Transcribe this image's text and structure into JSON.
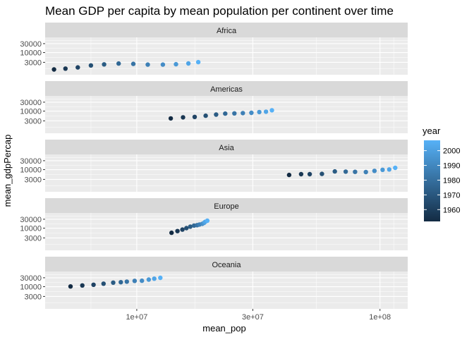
{
  "chart_data": {
    "type": "scatter",
    "title": "Mean GDP per capita by mean population per continent over time",
    "xlabel": "mean_pop",
    "ylabel": "mean_gdpPercap",
    "x_scale": "log10",
    "y_scale": "log10",
    "xlim": [
      4200000,
      130000000
    ],
    "ylim": [
      650,
      65000
    ],
    "x_ticks": [
      10000000,
      30000000,
      100000000
    ],
    "x_tick_labels": [
      "1e+07",
      "3e+07",
      "1e+08"
    ],
    "y_ticks": [
      3000,
      10000,
      30000
    ],
    "y_tick_labels": [
      "3000",
      "10000",
      "30000"
    ],
    "grid": true,
    "legend": {
      "title": "year",
      "placement": "right",
      "type": "colorbar",
      "range": [
        1952,
        2007
      ],
      "ticks": [
        1960,
        1970,
        1980,
        1990,
        2000
      ],
      "color_low": "#132b43",
      "color_high": "#56b1f7"
    },
    "years": [
      1952,
      1957,
      1962,
      1967,
      1972,
      1977,
      1982,
      1987,
      1992,
      1997,
      2002,
      2007
    ],
    "facets": [
      {
        "name": "Africa",
        "x": [
          4570000,
          5090000,
          5720000,
          6480000,
          7340000,
          8420000,
          9680000,
          11100000,
          12800000,
          14500000,
          16300000,
          17900000
        ],
        "y": [
          1250,
          1380,
          1600,
          2050,
          2340,
          2590,
          2480,
          2280,
          2280,
          2380,
          2600,
          3090
        ]
      },
      {
        "name": "Americas",
        "x": [
          13800000,
          15500000,
          17300000,
          19200000,
          21200000,
          23100000,
          25200000,
          27300000,
          29600000,
          31900000,
          33990000,
          35950000
        ],
        "y": [
          4080,
          4620,
          4900,
          5670,
          6490,
          7350,
          7510,
          7790,
          8050,
          8890,
          9290,
          11000
        ]
      },
      {
        "name": "Asia",
        "x": [
          42300000,
          47400000,
          51400000,
          57700000,
          65200000,
          72300000,
          79000000,
          87500000,
          94900000,
          102500000,
          109100000,
          115500000
        ],
        "y": [
          5200,
          5700,
          5700,
          5900,
          8000,
          7800,
          7600,
          7400,
          8600,
          9800,
          10200,
          12500
        ]
      },
      {
        "name": "Europe",
        "x": [
          13900000,
          14700000,
          15400000,
          16000000,
          16600000,
          17200000,
          17700000,
          18100000,
          18600000,
          18900000,
          19100000,
          19500000
        ],
        "y": [
          5660,
          6960,
          8370,
          10000,
          12000,
          13700,
          14500,
          15600,
          17000,
          19100,
          21700,
          25100
        ]
      },
      {
        "name": "Oceania",
        "x": [
          5340000,
          5970000,
          6640000,
          7300000,
          8000000,
          8600000,
          9100000,
          9800000,
          10500000,
          11200000,
          11800000,
          12500000
        ],
        "y": [
          10300,
          11600,
          12700,
          14500,
          16400,
          17300,
          18600,
          20400,
          20900,
          24000,
          26900,
          29800
        ]
      }
    ]
  }
}
